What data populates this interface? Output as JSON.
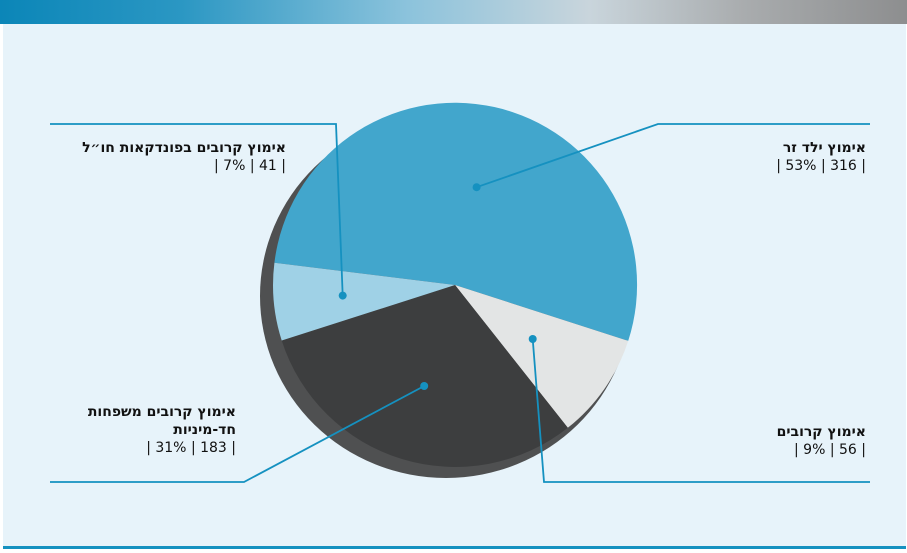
{
  "chart_data": {
    "type": "pie",
    "slices": [
      {
        "name": "אימוץ ילד זר",
        "count": 316,
        "percent": "53%",
        "color": "#42a6cc"
      },
      {
        "name": "אימוץ קרובים",
        "count": 56,
        "percent": "9%",
        "color": "#e3e5e5"
      },
      {
        "name": "אימוץ קרובים משפחות חד-מיניות",
        "count": 183,
        "percent": "31%",
        "color": "#3d3e3f"
      },
      {
        "name": "אימוץ קרובים בפונדקאות חו״ל",
        "count": 41,
        "percent": "7%",
        "color": "#9fd1e6"
      }
    ]
  },
  "labels": {
    "foreign": {
      "line1": "אימוץ ילד זר",
      "vals": "| 53% | 316 |"
    },
    "relatives": {
      "line1": "אימוץ קרובים",
      "vals": "| 9% | 56 |"
    },
    "samesex": {
      "line1": "אימוץ קרובים משפחות",
      "line2": "חד-מיניות",
      "vals": "| 31% | 183 |"
    },
    "surrogacy": {
      "line1": "אימוץ קרובים בפונדקאות חו״ל",
      "vals": "| 7% | 41 |"
    }
  },
  "colors": {
    "accent": "#1591c0",
    "panel": "#e7f3fa",
    "shadow": "#4f5051"
  }
}
